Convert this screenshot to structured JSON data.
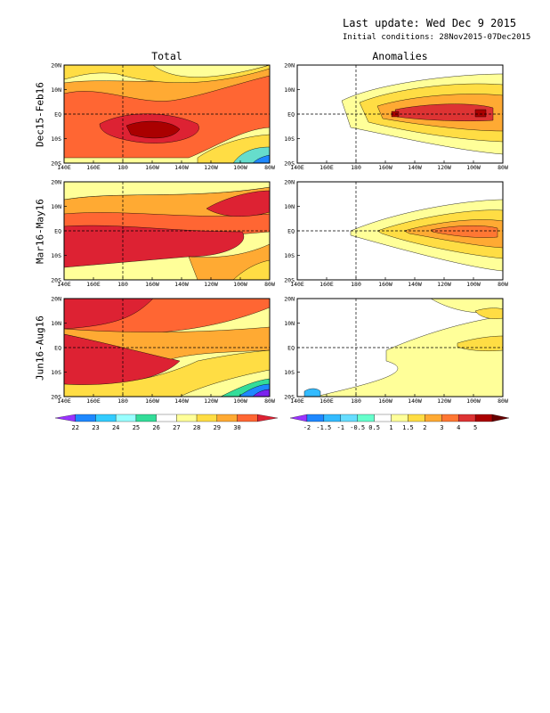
{
  "header": {
    "last_update": "Last update: Wed Dec 9 2015",
    "initial_conditions": "Initial conditions: 28Nov2015-07Dec2015"
  },
  "columns": [
    "Total",
    "Anomalies"
  ],
  "rows": [
    "Dec15-Feb16",
    "Mar16-May16",
    "Jun16-Aug16"
  ],
  "axes": {
    "x_ticks": [
      "140E",
      "160E",
      "180",
      "160W",
      "140W",
      "120W",
      "100W",
      "80W"
    ],
    "y_ticks": [
      "20N",
      "10N",
      "EQ",
      "10S",
      "20S"
    ]
  },
  "colorbars": {
    "total": {
      "labels": [
        "22",
        "23",
        "24",
        "25",
        "26",
        "27",
        "28",
        "29",
        "30"
      ],
      "colors": [
        "#9a33ff",
        "#1e88ff",
        "#33ccff",
        "#99ffff",
        "#33dd99",
        "#ffffff",
        "#ffff99",
        "#ffdd44",
        "#ffaa33",
        "#ff6633",
        "#dd2233"
      ]
    },
    "anomalies": {
      "labels": [
        "-2",
        "-1.5",
        "-1",
        "-0.5",
        "0.5",
        "1",
        "1.5",
        "2",
        "3",
        "4",
        "5"
      ],
      "colors": [
        "#9a33ff",
        "#1e88ff",
        "#33bbff",
        "#66ddff",
        "#66ffcc",
        "#ffffff",
        "#ffff99",
        "#ffdd44",
        "#ffaa33",
        "#ff7733",
        "#dd3333",
        "#aa0000",
        "#660000"
      ]
    }
  },
  "chart_data": [
    {
      "type": "heatmap",
      "title": "Total",
      "row": "Dec15-Feb16",
      "xlim": [
        "140E",
        "80W"
      ],
      "ylim": [
        "20S",
        "20N"
      ],
      "note": "SST total field, warm pool >29 west, cold tongue <25 southeast"
    },
    {
      "type": "heatmap",
      "title": "Anomalies",
      "row": "Dec15-Feb16",
      "xlim": [
        "140E",
        "80W"
      ],
      "ylim": [
        "20S",
        "20N"
      ],
      "max_anomaly_region": "near EQ 160W-100W, >3"
    },
    {
      "type": "heatmap",
      "title": "Total",
      "row": "Mar16-May16",
      "xlim": [
        "140E",
        "80W"
      ],
      "ylim": [
        "20S",
        "20N"
      ]
    },
    {
      "type": "heatmap",
      "title": "Anomalies",
      "row": "Mar16-May16",
      "xlim": [
        "140E",
        "80W"
      ],
      "ylim": [
        "20S",
        "20N"
      ],
      "max_anomaly_region": "near EQ 140W-100W, 1.5-2"
    },
    {
      "type": "heatmap",
      "title": "Total",
      "row": "Jun16-Aug16",
      "xlim": [
        "140E",
        "80W"
      ],
      "ylim": [
        "20S",
        "20N"
      ]
    },
    {
      "type": "heatmap",
      "title": "Anomalies",
      "row": "Jun16-Aug16",
      "xlim": [
        "140E",
        "80W"
      ],
      "ylim": [
        "20S",
        "20N"
      ],
      "max_anomaly_region": "weak 0.5-1 near EQ east"
    }
  ]
}
